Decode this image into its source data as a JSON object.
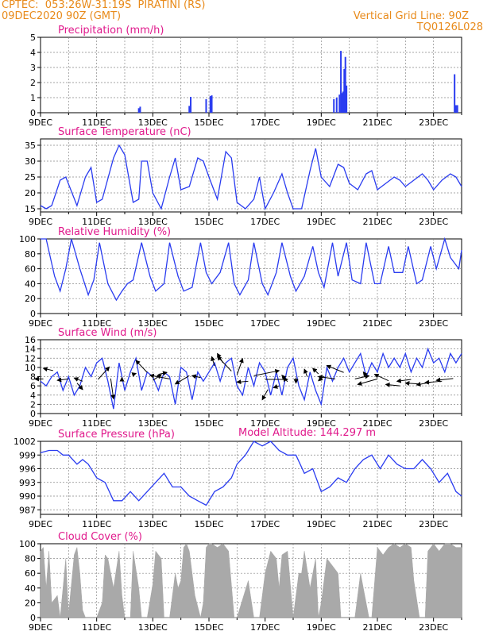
{
  "header": {
    "source": "CPTEC:",
    "coords": "053:26W-31:19S",
    "station": "PIRATINI (RS)",
    "datetime": "09DEC2020 90Z (GMT)",
    "grid_label": "Vertical Grid Line: 90Z",
    "run_id": "TQ0126L028",
    "model_altitude": "Model Altitude: 144.297 m"
  },
  "colors": {
    "line": "#2a3cf0",
    "cloud": "#a9a9a9",
    "title": "#e01a8c",
    "header": "#e88a1a",
    "arrow": "#000000"
  },
  "x_tick_labels": [
    "9DEC",
    "11DEC",
    "13DEC",
    "15DEC",
    "17DEC",
    "19DEC",
    "21DEC",
    "23DEC"
  ],
  "chart_data": [
    {
      "type": "bar",
      "title": "Precipitation (mm/h)",
      "ylim": [
        0,
        5
      ],
      "yticks": [
        0,
        1,
        2,
        3,
        4,
        5
      ],
      "x_range_days": [
        9,
        24
      ],
      "points": [
        {
          "x": 12.5,
          "y": 0.3
        },
        {
          "x": 12.55,
          "y": 0.4
        },
        {
          "x": 14.3,
          "y": 0.45
        },
        {
          "x": 14.35,
          "y": 1.05
        },
        {
          "x": 14.9,
          "y": 0.9
        },
        {
          "x": 15.05,
          "y": 1.1
        },
        {
          "x": 15.1,
          "y": 1.15
        },
        {
          "x": 19.45,
          "y": 0.9
        },
        {
          "x": 19.55,
          "y": 1.0
        },
        {
          "x": 19.65,
          "y": 1.2
        },
        {
          "x": 19.7,
          "y": 4.1
        },
        {
          "x": 19.75,
          "y": 1.3
        },
        {
          "x": 19.78,
          "y": 1.4
        },
        {
          "x": 19.82,
          "y": 2.9
        },
        {
          "x": 19.86,
          "y": 3.7
        },
        {
          "x": 19.9,
          "y": 1.8
        },
        {
          "x": 23.75,
          "y": 2.55
        },
        {
          "x": 23.8,
          "y": 0.5
        },
        {
          "x": 23.85,
          "y": 0.5
        }
      ]
    },
    {
      "type": "line",
      "title": "Surface Temperature (nC)",
      "ylim": [
        14,
        37
      ],
      "yticks": [
        15,
        20,
        25,
        30,
        35
      ],
      "x_range_days": [
        9,
        24
      ],
      "x": [
        9.0,
        9.2,
        9.4,
        9.7,
        9.9,
        10.3,
        10.6,
        10.8,
        11.0,
        11.2,
        11.6,
        11.8,
        12.0,
        12.3,
        12.5,
        12.6,
        12.8,
        13.0,
        13.3,
        13.6,
        13.8,
        14.0,
        14.3,
        14.6,
        14.8,
        15.0,
        15.3,
        15.6,
        15.8,
        16.0,
        16.3,
        16.6,
        16.8,
        17.0,
        17.3,
        17.6,
        17.8,
        18.0,
        18.3,
        18.6,
        18.8,
        19.0,
        19.3,
        19.6,
        19.8,
        20.0,
        20.3,
        20.6,
        20.8,
        21.0,
        21.3,
        21.6,
        21.8,
        22.0,
        22.3,
        22.6,
        22.8,
        23.0,
        23.3,
        23.6,
        23.8,
        24.0
      ],
      "y": [
        16,
        15,
        16,
        24,
        25,
        16,
        25,
        28,
        17,
        18,
        31,
        35,
        32,
        17,
        18,
        30,
        30,
        20,
        15,
        25,
        31,
        21,
        22,
        31,
        30,
        25,
        18,
        33,
        31,
        17,
        15,
        18,
        25,
        15,
        20,
        26,
        20,
        15,
        15,
        27,
        34,
        25,
        22,
        29,
        28,
        23,
        21,
        26,
        27,
        21,
        23,
        25,
        24,
        22,
        24,
        26,
        24,
        21,
        24,
        26,
        25,
        22
      ]
    },
    {
      "type": "line",
      "title": "Relative Humidity (%)",
      "ylim": [
        0,
        100
      ],
      "yticks": [
        0,
        20,
        40,
        60,
        80,
        100
      ],
      "x_range_days": [
        9,
        24
      ],
      "x": [
        9.0,
        9.2,
        9.5,
        9.7,
        9.9,
        10.1,
        10.4,
        10.7,
        10.9,
        11.1,
        11.4,
        11.7,
        11.9,
        12.1,
        12.3,
        12.6,
        12.9,
        13.1,
        13.4,
        13.6,
        13.9,
        14.1,
        14.4,
        14.7,
        14.9,
        15.1,
        15.4,
        15.7,
        15.9,
        16.1,
        16.4,
        16.6,
        16.9,
        17.1,
        17.4,
        17.6,
        17.9,
        18.1,
        18.4,
        18.7,
        18.9,
        19.1,
        19.4,
        19.6,
        19.9,
        20.1,
        20.4,
        20.6,
        20.9,
        21.1,
        21.4,
        21.6,
        21.9,
        22.1,
        22.4,
        22.6,
        22.9,
        23.1,
        23.4,
        23.6,
        23.9,
        24.0
      ],
      "y": [
        100,
        100,
        50,
        30,
        60,
        100,
        60,
        25,
        45,
        95,
        40,
        18,
        30,
        40,
        45,
        95,
        50,
        30,
        40,
        95,
        50,
        30,
        35,
        95,
        55,
        40,
        55,
        95,
        40,
        25,
        45,
        95,
        40,
        25,
        55,
        95,
        50,
        30,
        50,
        90,
        55,
        35,
        95,
        50,
        95,
        45,
        40,
        95,
        40,
        40,
        90,
        55,
        55,
        90,
        40,
        45,
        90,
        60,
        100,
        75,
        60,
        85
      ]
    },
    {
      "type": "line",
      "title": "Surface Wind (m/s)",
      "ylim": [
        0,
        16
      ],
      "yticks": [
        0,
        2,
        4,
        6,
        8,
        10,
        12,
        14,
        16
      ],
      "x_range_days": [
        9,
        24
      ],
      "x": [
        9.0,
        9.2,
        9.4,
        9.6,
        9.8,
        10.0,
        10.2,
        10.4,
        10.6,
        10.8,
        11.0,
        11.2,
        11.4,
        11.6,
        11.8,
        12.0,
        12.2,
        12.4,
        12.6,
        12.8,
        13.0,
        13.2,
        13.4,
        13.6,
        13.8,
        14.0,
        14.2,
        14.4,
        14.6,
        14.8,
        15.0,
        15.2,
        15.4,
        15.6,
        15.8,
        16.0,
        16.2,
        16.4,
        16.6,
        16.8,
        17.0,
        17.2,
        17.4,
        17.6,
        17.8,
        18.0,
        18.2,
        18.4,
        18.6,
        18.8,
        19.0,
        19.2,
        19.4,
        19.6,
        19.8,
        20.0,
        20.2,
        20.4,
        20.6,
        20.8,
        21.0,
        21.2,
        21.4,
        21.6,
        21.8,
        22.0,
        22.2,
        22.4,
        22.6,
        22.8,
        23.0,
        23.2,
        23.4,
        23.6,
        23.8,
        24.0
      ],
      "y": [
        7,
        6,
        8,
        9,
        5,
        8,
        4,
        6,
        10,
        8,
        11,
        12,
        7,
        1,
        11,
        5,
        9,
        12,
        5,
        9,
        8,
        5,
        9,
        8,
        2,
        10,
        9,
        3,
        9,
        7,
        9,
        11,
        7,
        11,
        12,
        6,
        4,
        10,
        6,
        11,
        9,
        4,
        9,
        4,
        10,
        12,
        6,
        3,
        9,
        5,
        2,
        10,
        7,
        10,
        12,
        9,
        11,
        13,
        8,
        11,
        9,
        13,
        10,
        12,
        10,
        13,
        9,
        12,
        10,
        14,
        11,
        12,
        9,
        13,
        11,
        13
      ]
    },
    {
      "type": "line",
      "title": "Surface Pressure (hPa)",
      "ylim": [
        986,
        1002
      ],
      "yticks": [
        987,
        990,
        993,
        996,
        999,
        1002
      ],
      "x_range_days": [
        9,
        24
      ],
      "x": [
        9.0,
        9.3,
        9.6,
        9.8,
        10.0,
        10.3,
        10.5,
        10.7,
        11.0,
        11.3,
        11.6,
        11.9,
        12.2,
        12.5,
        12.8,
        13.1,
        13.4,
        13.7,
        14.0,
        14.3,
        14.6,
        14.9,
        15.2,
        15.5,
        15.8,
        16.0,
        16.3,
        16.6,
        16.9,
        17.2,
        17.5,
        17.8,
        18.1,
        18.4,
        18.7,
        19.0,
        19.3,
        19.6,
        19.9,
        20.2,
        20.5,
        20.8,
        21.1,
        21.4,
        21.7,
        22.0,
        22.3,
        22.6,
        22.9,
        23.2,
        23.5,
        23.8,
        24.0
      ],
      "y": [
        999.5,
        1000,
        1000,
        999,
        999,
        997,
        998,
        997,
        994,
        993,
        989,
        989,
        991,
        989,
        991,
        993,
        995,
        992,
        992,
        990,
        989,
        988,
        991,
        992,
        994,
        997,
        999,
        1002,
        1001,
        1002,
        1000,
        999,
        999,
        995,
        996,
        991,
        992,
        994,
        993,
        996,
        998,
        999,
        996,
        999,
        997,
        996,
        996,
        998,
        996,
        993,
        995,
        991,
        990
      ]
    },
    {
      "type": "area",
      "title": "Cloud Cover (%)",
      "ylim": [
        0,
        100
      ],
      "yticks": [
        0,
        20,
        40,
        60,
        80,
        100
      ],
      "x_range_days": [
        9,
        24
      ],
      "x": [
        9.0,
        9.1,
        9.2,
        9.3,
        9.4,
        9.6,
        9.7,
        9.8,
        9.9,
        10.0,
        10.2,
        10.3,
        10.4,
        10.5,
        10.6,
        10.8,
        11.0,
        11.2,
        11.3,
        11.4,
        11.6,
        11.8,
        11.9,
        12.0,
        12.2,
        12.3,
        12.5,
        12.6,
        12.8,
        13.0,
        13.1,
        13.3,
        13.4,
        13.6,
        13.8,
        13.9,
        14.0,
        14.1,
        14.2,
        14.3,
        14.5,
        14.7,
        14.8,
        14.9,
        15.0,
        15.1,
        15.3,
        15.5,
        15.7,
        15.9,
        16.0,
        16.2,
        16.4,
        16.6,
        16.8,
        17.0,
        17.2,
        17.4,
        17.5,
        17.6,
        17.8,
        18.0,
        18.2,
        18.3,
        18.4,
        18.6,
        18.8,
        18.9,
        19.0,
        19.2,
        19.4,
        19.6,
        19.7,
        19.8,
        20.0,
        20.2,
        20.4,
        20.5,
        20.7,
        20.8,
        21.0,
        21.2,
        21.4,
        21.6,
        21.8,
        22.0,
        22.2,
        22.3,
        22.5,
        22.7,
        22.8,
        23.0,
        23.2,
        23.4,
        23.6,
        23.8,
        24.0
      ],
      "y": [
        90,
        95,
        40,
        90,
        20,
        30,
        0,
        40,
        80,
        5,
        85,
        95,
        60,
        10,
        0,
        0,
        0,
        20,
        85,
        80,
        40,
        90,
        30,
        0,
        0,
        90,
        40,
        0,
        0,
        45,
        90,
        80,
        0,
        0,
        60,
        40,
        50,
        95,
        100,
        90,
        30,
        0,
        20,
        95,
        100,
        100,
        95,
        100,
        90,
        0,
        0,
        25,
        50,
        0,
        0,
        60,
        90,
        80,
        40,
        85,
        90,
        0,
        60,
        60,
        90,
        40,
        80,
        0,
        20,
        80,
        70,
        60,
        0,
        0,
        0,
        0,
        60,
        40,
        0,
        0,
        95,
        85,
        95,
        100,
        95,
        100,
        95,
        50,
        0,
        0,
        90,
        100,
        90,
        100,
        100,
        95,
        95
      ]
    }
  ],
  "wind_vectors": [
    {
      "x": 9.1,
      "v": 7.5,
      "dx": -0.3,
      "dy": 0
    },
    {
      "x": 9.45,
      "v": 9.3,
      "dx": -0.35,
      "dy": 0.5
    },
    {
      "x": 10.0,
      "v": 7.5,
      "dx": -0.4,
      "dy": -0.3
    },
    {
      "x": 10.3,
      "v": 6.6,
      "dx": 0.2,
      "dy": -1.4
    },
    {
      "x": 10.5,
      "v": 7.0,
      "dx": -0.3,
      "dy": 0.7
    },
    {
      "x": 11.05,
      "v": 7.4,
      "dx": 0.4,
      "dy": 2.7
    },
    {
      "x": 11.5,
      "v": 7.6,
      "dx": 0.1,
      "dy": -4.4
    },
    {
      "x": 11.9,
      "v": 7.2,
      "dx": 0.0,
      "dy": 0.6
    },
    {
      "x": 12.3,
      "v": 8.5,
      "dx": 0.1,
      "dy": 0.2
    },
    {
      "x": 12.8,
      "v": 8.9,
      "dx": -0.4,
      "dy": 2.6
    },
    {
      "x": 13.0,
      "v": 7.2,
      "dx": 0.3,
      "dy": 1.2
    },
    {
      "x": 13.2,
      "v": 8.5,
      "dx": 0.3,
      "dy": 0.4
    },
    {
      "x": 13.6,
      "v": 7.5,
      "dx": -0.7,
      "dy": 0.8
    },
    {
      "x": 14.3,
      "v": 8.2,
      "dx": -0.5,
      "dy": -1.8
    },
    {
      "x": 14.7,
      "v": 7.8,
      "dx": -0.3,
      "dy": 0.4
    },
    {
      "x": 15.2,
      "v": 10.3,
      "dx": -0.1,
      "dy": 2.0
    },
    {
      "x": 15.5,
      "v": 11.0,
      "dx": -0.2,
      "dy": 2.0
    },
    {
      "x": 15.8,
      "v": 9.2,
      "dx": -0.5,
      "dy": 3.2
    },
    {
      "x": 16.0,
      "v": 8.4,
      "dx": 0.2,
      "dy": 3.5
    },
    {
      "x": 16.4,
      "v": 7.0,
      "dx": -0.4,
      "dy": -0.2
    },
    {
      "x": 16.6,
      "v": 8.2,
      "dx": 0.9,
      "dy": 1.1
    },
    {
      "x": 17.0,
      "v": 7.4,
      "dx": 0.8,
      "dy": 0.0
    },
    {
      "x": 17.1,
      "v": 5.2,
      "dx": -0.2,
      "dy": -2.2
    },
    {
      "x": 17.5,
      "v": 6.0,
      "dx": -0.2,
      "dy": -0.4
    },
    {
      "x": 17.8,
      "v": 6.9,
      "dx": -0.2,
      "dy": 1.4
    },
    {
      "x": 18.1,
      "v": 7.8,
      "dx": 0.0,
      "dy": -1.2
    },
    {
      "x": 18.5,
      "v": 8.0,
      "dx": -0.1,
      "dy": 1.6
    },
    {
      "x": 18.9,
      "v": 8.6,
      "dx": -0.2,
      "dy": 1.2
    },
    {
      "x": 19.1,
      "v": 8.1,
      "dx": -0.2,
      "dy": -1.0
    },
    {
      "x": 19.5,
      "v": 7.5,
      "dx": -0.6,
      "dy": 0.5
    },
    {
      "x": 19.8,
      "v": 8.9,
      "dx": -0.6,
      "dy": 1.5
    },
    {
      "x": 20.2,
      "v": 7.5,
      "dx": 0.5,
      "dy": 0.7
    },
    {
      "x": 20.6,
      "v": 8.2,
      "dx": -0.1,
      "dy": 0.8
    },
    {
      "x": 21.0,
      "v": 7.5,
      "dx": -0.7,
      "dy": -1.2
    },
    {
      "x": 21.4,
      "v": 7.1,
      "dx": -0.5,
      "dy": 1.4
    },
    {
      "x": 21.8,
      "v": 6.0,
      "dx": -0.5,
      "dy": 0.3
    },
    {
      "x": 22.2,
      "v": 7.4,
      "dx": -0.5,
      "dy": -0.4
    },
    {
      "x": 22.5,
      "v": 6.4,
      "dx": -0.5,
      "dy": 0.2
    },
    {
      "x": 22.9,
      "v": 6.8,
      "dx": -0.5,
      "dy": -0.6
    },
    {
      "x": 23.3,
      "v": 7.0,
      "dx": -0.6,
      "dy": -0.3
    },
    {
      "x": 23.7,
      "v": 7.6,
      "dx": -0.6,
      "dy": -0.4
    }
  ]
}
